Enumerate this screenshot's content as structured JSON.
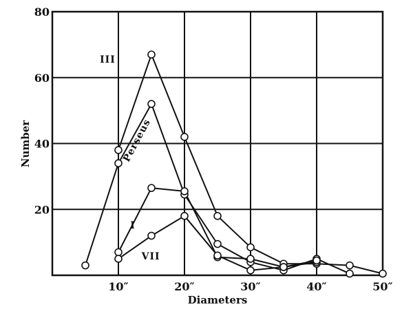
{
  "chart_data": {
    "type": "line",
    "title": "",
    "xlabel": "Diameters",
    "ylabel": "Number",
    "xlim": [
      0,
      50
    ],
    "ylim": [
      0,
      80
    ],
    "grid": true,
    "x_ticks": [
      {
        "value": 10,
        "label": "10″"
      },
      {
        "value": 20,
        "label": "20″"
      },
      {
        "value": 30,
        "label": "30″"
      },
      {
        "value": 40,
        "label": "40″"
      },
      {
        "value": 50,
        "label": "50″"
      }
    ],
    "y_ticks": [
      {
        "value": 20,
        "label": "20"
      },
      {
        "value": 40,
        "label": "40"
      },
      {
        "value": 60,
        "label": "60"
      },
      {
        "value": 80,
        "label": "80"
      }
    ],
    "series": [
      {
        "name": "III",
        "x": [
          10,
          15,
          20,
          25,
          30,
          35,
          40,
          45,
          50
        ],
        "y": [
          38,
          67,
          42,
          18,
          8.5,
          3.5,
          3.5,
          3,
          0.5
        ]
      },
      {
        "name": "Perseus",
        "x": [
          5,
          10,
          15,
          20,
          25,
          30,
          35,
          40,
          45
        ],
        "y": [
          3,
          34,
          52,
          24.5,
          9.5,
          4,
          1.5,
          5,
          0.5
        ]
      },
      {
        "name": "I",
        "x": [
          10,
          15,
          20,
          25,
          30,
          35,
          40
        ],
        "y": [
          7,
          26.5,
          25.5,
          5.5,
          5,
          2.5,
          4
        ]
      },
      {
        "name": "VII",
        "x": [
          10,
          15,
          20,
          25,
          30,
          35,
          40
        ],
        "y": [
          5,
          12,
          18,
          6,
          1.5,
          2.5,
          4.5
        ]
      }
    ],
    "series_labels": [
      {
        "series": "III",
        "text": "III",
        "x": 7.2,
        "y": 64.5,
        "rotate": 0
      },
      {
        "series": "Perseus",
        "text": "Perseus",
        "x": 13.2,
        "y": 40.5,
        "rotate": -62
      },
      {
        "series": "I",
        "text": "I",
        "x": 11.8,
        "y": 14.2,
        "rotate": 0
      },
      {
        "series": "VII",
        "text": "VII",
        "x": 13.5,
        "y": 4.8,
        "rotate": 0
      }
    ]
  }
}
